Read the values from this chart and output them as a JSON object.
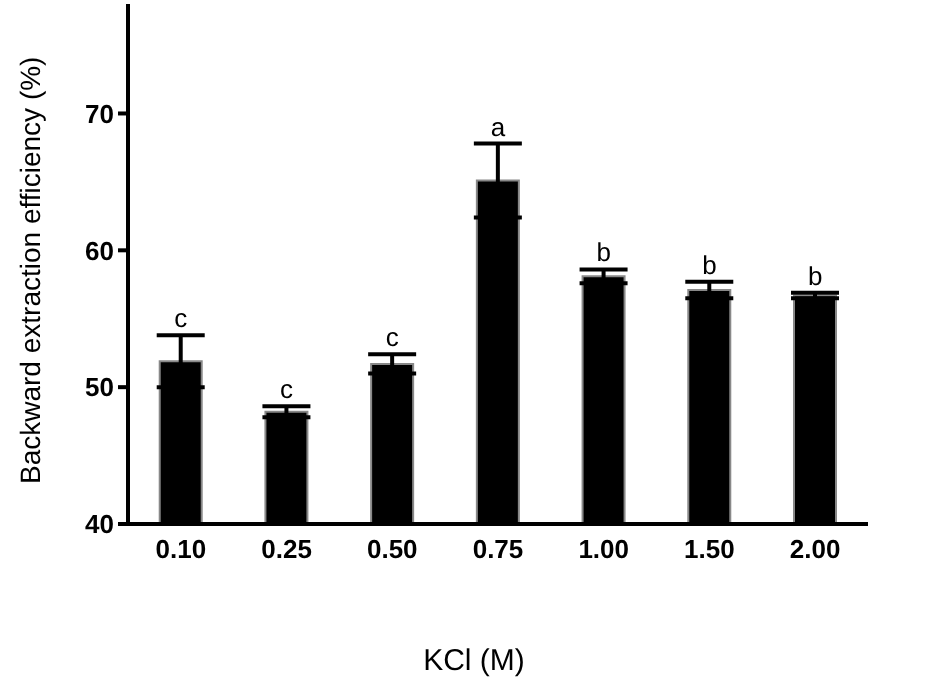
{
  "chart_data": {
    "type": "bar",
    "xlabel": "KCl (M)",
    "ylabel": "Backward extraction efficiency (%)",
    "categories": [
      "0.10",
      "0.25",
      "0.50",
      "0.75",
      "1.00",
      "1.50",
      "2.00"
    ],
    "values": [
      51.9,
      48.2,
      51.7,
      65.1,
      58.1,
      57.1,
      56.7
    ],
    "errors": [
      1.9,
      0.4,
      0.7,
      2.7,
      0.5,
      0.6,
      0.2
    ],
    "color": "#000000",
    "ylim": [
      40,
      78
    ],
    "yticks": [
      40,
      50,
      60,
      70
    ],
    "grid": false,
    "legend": false,
    "annotations": [
      {
        "text": "c",
        "x": "0.10",
        "y": 53.8
      },
      {
        "text": "c",
        "x": "0.25",
        "y": 48.6
      },
      {
        "text": "c",
        "x": "0.50",
        "y": 52.4
      },
      {
        "text": "a",
        "x": "0.75",
        "y": 67.8
      },
      {
        "text": "b",
        "x": "1.00",
        "y": 58.6
      },
      {
        "text": "b",
        "x": "1.50",
        "y": 57.7
      },
      {
        "text": "b",
        "x": "2.00",
        "y": 56.9
      }
    ]
  }
}
